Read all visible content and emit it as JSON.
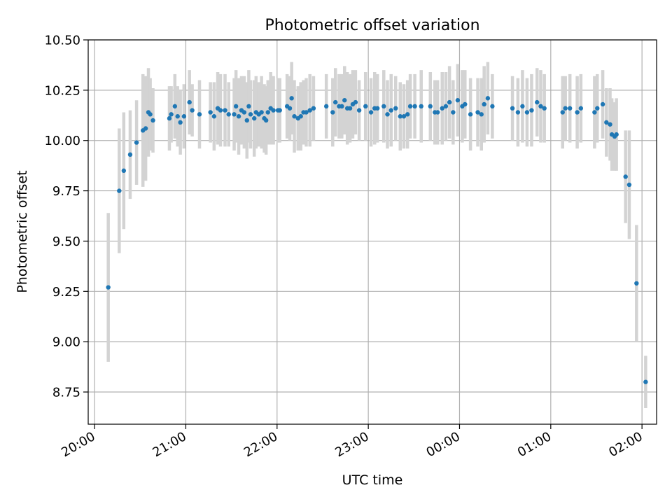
{
  "chart_data": {
    "type": "scatter",
    "title": "Photometric offset variation",
    "xlabel": "UTC time",
    "ylabel": "Photometric offset",
    "x_unit": "hours of UTC night (20:00 on first day through 02:00 next day)",
    "xlim": [
      19.93,
      26.16
    ],
    "ylim": [
      8.59,
      10.5
    ],
    "xticks": [
      {
        "value": 20,
        "label": "20:00"
      },
      {
        "value": 21,
        "label": "21:00"
      },
      {
        "value": 22,
        "label": "22:00"
      },
      {
        "value": 23,
        "label": "23:00"
      },
      {
        "value": 24,
        "label": "00:00"
      },
      {
        "value": 25,
        "label": "01:00"
      },
      {
        "value": 26,
        "label": "02:00"
      }
    ],
    "yticks": [
      {
        "value": 8.75,
        "label": "8.75"
      },
      {
        "value": 9.0,
        "label": "9.00"
      },
      {
        "value": 9.25,
        "label": "9.25"
      },
      {
        "value": 9.5,
        "label": "9.50"
      },
      {
        "value": 9.75,
        "label": "9.75"
      },
      {
        "value": 10.0,
        "label": "10.00"
      },
      {
        "value": 10.25,
        "label": "10.25"
      },
      {
        "value": 10.5,
        "label": "10.50"
      }
    ],
    "grid": true,
    "colors": {
      "point": "#1f77b4",
      "errorbar": "#d3d3d3",
      "grid": "#b0b0b0"
    },
    "points": [
      [
        20.15,
        9.27,
        0.37
      ],
      [
        20.27,
        9.75,
        0.31
      ],
      [
        20.32,
        9.85,
        0.29
      ],
      [
        20.39,
        9.93,
        0.22
      ],
      [
        20.46,
        9.99,
        0.21
      ],
      [
        20.53,
        10.05,
        0.28
      ],
      [
        20.56,
        10.06,
        0.26
      ],
      [
        20.59,
        10.14,
        0.22
      ],
      [
        20.61,
        10.13,
        0.18
      ],
      [
        20.64,
        10.1,
        0.16
      ],
      [
        20.82,
        10.11,
        0.16
      ],
      [
        20.84,
        10.13,
        0.14
      ],
      [
        20.88,
        10.17,
        0.16
      ],
      [
        20.91,
        10.12,
        0.15
      ],
      [
        20.94,
        10.09,
        0.16
      ],
      [
        20.98,
        10.12,
        0.16
      ],
      [
        21.04,
        10.19,
        0.16
      ],
      [
        21.07,
        10.15,
        0.13
      ],
      [
        21.15,
        10.13,
        0.17
      ],
      [
        21.27,
        10.14,
        0.15
      ],
      [
        21.31,
        10.12,
        0.17
      ],
      [
        21.35,
        10.16,
        0.18
      ],
      [
        21.38,
        10.15,
        0.18
      ],
      [
        21.43,
        10.15,
        0.18
      ],
      [
        21.47,
        10.13,
        0.16
      ],
      [
        21.53,
        10.13,
        0.18
      ],
      [
        21.55,
        10.17,
        0.18
      ],
      [
        21.58,
        10.12,
        0.19
      ],
      [
        21.61,
        10.15,
        0.17
      ],
      [
        21.64,
        10.14,
        0.18
      ],
      [
        21.67,
        10.1,
        0.19
      ],
      [
        21.69,
        10.17,
        0.18
      ],
      [
        21.71,
        10.13,
        0.17
      ],
      [
        21.75,
        10.11,
        0.19
      ],
      [
        21.77,
        10.14,
        0.18
      ],
      [
        21.8,
        10.13,
        0.16
      ],
      [
        21.83,
        10.14,
        0.18
      ],
      [
        21.86,
        10.11,
        0.17
      ],
      [
        21.88,
        10.1,
        0.17
      ],
      [
        21.9,
        10.14,
        0.16
      ],
      [
        21.93,
        10.16,
        0.18
      ],
      [
        21.96,
        10.15,
        0.17
      ],
      [
        22.01,
        10.15,
        0.16
      ],
      [
        22.03,
        10.15,
        0.16
      ],
      [
        22.11,
        10.17,
        0.16
      ],
      [
        22.14,
        10.16,
        0.16
      ],
      [
        22.16,
        10.21,
        0.18
      ],
      [
        22.19,
        10.12,
        0.18
      ],
      [
        22.23,
        10.11,
        0.16
      ],
      [
        22.26,
        10.12,
        0.17
      ],
      [
        22.29,
        10.14,
        0.16
      ],
      [
        22.32,
        10.14,
        0.17
      ],
      [
        22.36,
        10.15,
        0.18
      ],
      [
        22.4,
        10.16,
        0.16
      ],
      [
        22.54,
        10.17,
        0.16
      ],
      [
        22.61,
        10.14,
        0.17
      ],
      [
        22.64,
        10.19,
        0.17
      ],
      [
        22.68,
        10.17,
        0.16
      ],
      [
        22.71,
        10.17,
        0.16
      ],
      [
        22.74,
        10.2,
        0.17
      ],
      [
        22.77,
        10.16,
        0.18
      ],
      [
        22.8,
        10.16,
        0.17
      ],
      [
        22.83,
        10.18,
        0.17
      ],
      [
        22.86,
        10.19,
        0.16
      ],
      [
        22.9,
        10.15,
        0.15
      ],
      [
        22.97,
        10.17,
        0.17
      ],
      [
        23.03,
        10.14,
        0.17
      ],
      [
        23.07,
        10.16,
        0.18
      ],
      [
        23.1,
        10.16,
        0.17
      ],
      [
        23.17,
        10.17,
        0.18
      ],
      [
        23.21,
        10.13,
        0.17
      ],
      [
        23.25,
        10.15,
        0.18
      ],
      [
        23.3,
        10.16,
        0.16
      ],
      [
        23.35,
        10.12,
        0.17
      ],
      [
        23.39,
        10.12,
        0.16
      ],
      [
        23.43,
        10.13,
        0.17
      ],
      [
        23.46,
        10.17,
        0.16
      ],
      [
        23.51,
        10.17,
        0.16
      ],
      [
        23.58,
        10.17,
        0.18
      ],
      [
        23.68,
        10.17,
        0.17
      ],
      [
        23.73,
        10.14,
        0.16
      ],
      [
        23.76,
        10.14,
        0.16
      ],
      [
        23.81,
        10.16,
        0.18
      ],
      [
        23.85,
        10.17,
        0.17
      ],
      [
        23.89,
        10.19,
        0.18
      ],
      [
        23.93,
        10.14,
        0.16
      ],
      [
        23.98,
        10.2,
        0.18
      ],
      [
        24.03,
        10.17,
        0.18
      ],
      [
        24.06,
        10.18,
        0.17
      ],
      [
        24.12,
        10.13,
        0.18
      ],
      [
        24.2,
        10.14,
        0.17
      ],
      [
        24.24,
        10.13,
        0.18
      ],
      [
        24.27,
        10.18,
        0.19
      ],
      [
        24.31,
        10.21,
        0.18
      ],
      [
        24.36,
        10.17,
        0.16
      ],
      [
        24.58,
        10.16,
        0.16
      ],
      [
        24.64,
        10.14,
        0.17
      ],
      [
        24.69,
        10.17,
        0.18
      ],
      [
        24.74,
        10.14,
        0.17
      ],
      [
        24.79,
        10.15,
        0.18
      ],
      [
        24.85,
        10.19,
        0.17
      ],
      [
        24.89,
        10.17,
        0.18
      ],
      [
        24.93,
        10.16,
        0.17
      ],
      [
        25.13,
        10.14,
        0.18
      ],
      [
        25.16,
        10.16,
        0.16
      ],
      [
        25.21,
        10.16,
        0.17
      ],
      [
        25.29,
        10.14,
        0.18
      ],
      [
        25.33,
        10.16,
        0.17
      ],
      [
        25.48,
        10.14,
        0.18
      ],
      [
        25.51,
        10.16,
        0.17
      ],
      [
        25.57,
        10.18,
        0.17
      ],
      [
        25.61,
        10.09,
        0.17
      ],
      [
        25.65,
        10.08,
        0.18
      ],
      [
        25.67,
        10.03,
        0.18
      ],
      [
        25.7,
        10.02,
        0.17
      ],
      [
        25.72,
        10.03,
        0.18
      ],
      [
        25.82,
        9.82,
        0.23
      ],
      [
        25.86,
        9.78,
        0.27
      ],
      [
        25.94,
        9.29,
        0.29
      ],
      [
        26.04,
        8.8,
        0.13
      ]
    ]
  }
}
